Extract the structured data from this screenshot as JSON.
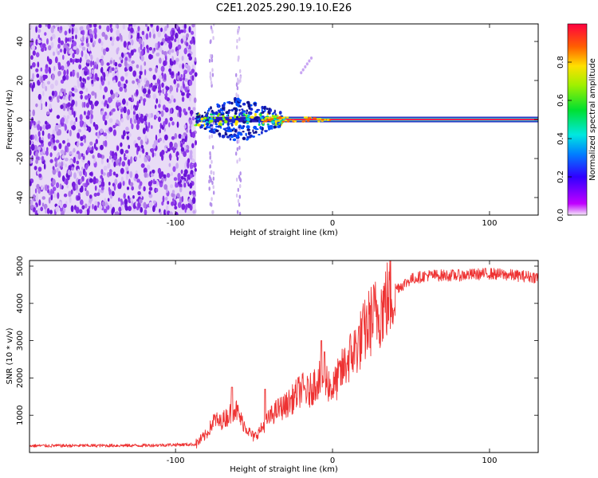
{
  "title": "C2E1.2025.290.19.10.E26",
  "chart_data": [
    {
      "type": "heatmap",
      "name": "spectrogram",
      "xlabel": "Height of straight line (km)",
      "ylabel": "Frequency (Hz)",
      "xlim": [
        -193,
        131
      ],
      "ylim": [
        -49,
        49
      ],
      "xticks": [
        -100,
        0,
        100
      ],
      "yticks": [
        -40,
        -20,
        0,
        20,
        40
      ],
      "noise_region_x": [
        -193,
        -87
      ],
      "signal_start_x": -87,
      "signal_freq_hz": 0,
      "sparse_speckle_columns_x": [
        -77,
        -60
      ],
      "colorbar": {
        "label": "Normalized spectral amplitude",
        "range": [
          0.0,
          1.0
        ],
        "ticks": [
          0.0,
          0.2,
          0.4,
          0.6,
          0.8
        ],
        "colormap": "rainbow (magenta-blue-cyan-green-yellow-red)"
      }
    },
    {
      "type": "line",
      "name": "snr",
      "xlabel": "Height of straight line (km)",
      "ylabel": "SNR (10 * v/v)",
      "xlim": [
        -193,
        131
      ],
      "ylim": [
        0,
        5150
      ],
      "xticks": [
        -100,
        0,
        100
      ],
      "yticks": [
        1000,
        2000,
        3000,
        4000,
        5000
      ],
      "color": "#ee3333",
      "series": [
        {
          "name": "SNR",
          "points": [
            [
              -193,
              180
            ],
            [
              -120,
              190
            ],
            [
              -87,
              220
            ],
            [
              -80,
              500
            ],
            [
              -75,
              900
            ],
            [
              -72,
              800
            ],
            [
              -66,
              1000
            ],
            [
              -62,
              1200
            ],
            [
              -58,
              850
            ],
            [
              -53,
              550
            ],
            [
              -50,
              400
            ],
            [
              -45,
              650
            ],
            [
              -40,
              950
            ],
            [
              -35,
              1150
            ],
            [
              -30,
              1250
            ],
            [
              -25,
              1450
            ],
            [
              -20,
              1700
            ],
            [
              -15,
              1600
            ],
            [
              -10,
              1950
            ],
            [
              -5,
              2000
            ],
            [
              0,
              1700
            ],
            [
              5,
              2100
            ],
            [
              10,
              2500
            ],
            [
              15,
              2800
            ],
            [
              20,
              3200
            ],
            [
              25,
              3600
            ],
            [
              30,
              3800
            ],
            [
              35,
              4100
            ],
            [
              40,
              4400
            ],
            [
              45,
              4500
            ],
            [
              50,
              4650
            ],
            [
              60,
              4750
            ],
            [
              80,
              4750
            ],
            [
              100,
              4800
            ],
            [
              131,
              4700
            ]
          ]
        }
      ],
      "spikes": [
        [
          -64,
          1750
        ],
        [
          -43,
          1700
        ],
        [
          -7,
          3000
        ],
        [
          -5,
          2700
        ]
      ]
    }
  ]
}
